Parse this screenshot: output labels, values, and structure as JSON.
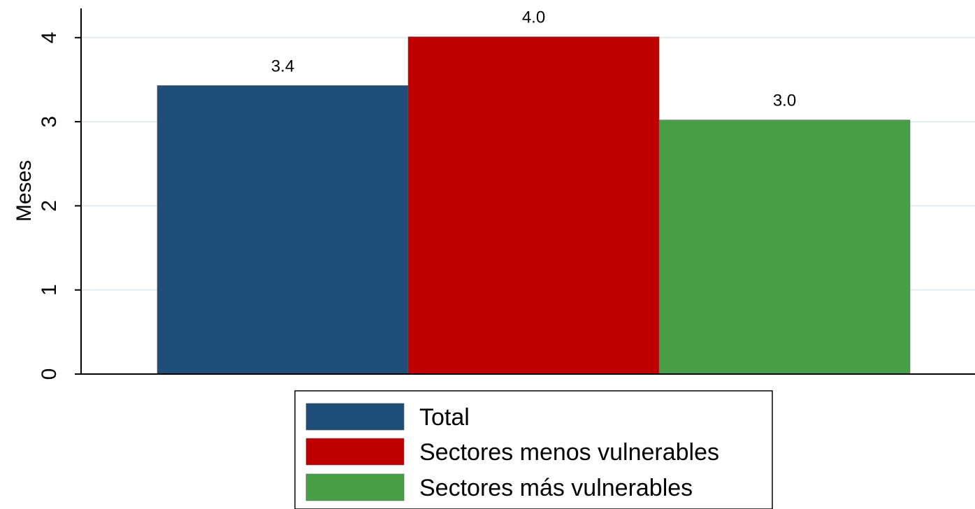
{
  "chart_data": {
    "type": "bar",
    "title": "",
    "title_color": "#1a4a8a",
    "xlabel": "",
    "ylabel": "Meses",
    "ylim": [
      0,
      4.15
    ],
    "yticks": [
      0,
      1,
      2,
      3,
      4
    ],
    "grid": true,
    "legend_position": "bottom-center",
    "series": [
      {
        "name": "Total",
        "values": [
          3.43
        ],
        "label": "3.4",
        "color": "#1f4e79"
      },
      {
        "name": "Sectores menos vulnerables",
        "values": [
          4.01
        ],
        "label": "4.0",
        "color": "#c00000"
      },
      {
        "name": "Sectores más vulnerables",
        "values": [
          3.02
        ],
        "label": "3.0",
        "color": "#479f48"
      }
    ]
  }
}
